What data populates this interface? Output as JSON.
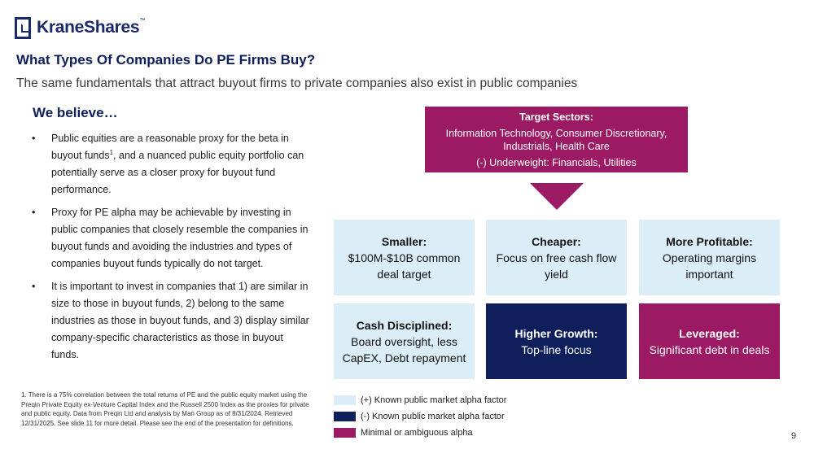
{
  "logo": {
    "name": "KraneShares",
    "tm": "™"
  },
  "title": "What Types Of Companies Do PE Firms Buy?",
  "subtitle": "The same fundamentals that attract buyout firms to private companies also exist in public companies",
  "believe": "We believe…",
  "bullets": {
    "b1_pre": "Public equities are a reasonable proxy for the beta in buyout funds",
    "b1_sup": "1",
    "b1_post": ", and a nuanced public equity portfolio can potentially serve as a closer proxy for buyout fund performance.",
    "b2": "Proxy for PE alpha may be achievable by investing in public companies that closely resemble the companies in buyout funds and avoiding the industries and types of companies buyout funds typically do not target.",
    "b3": "It is important to invest in companies that 1) are similar in size to those in buyout funds, 2) belong to the same industries as those in buyout funds, and 3) display similar company-specific characteristics as those in buyout funds."
  },
  "footnote": "1. There is a 75% correlation between the total returns of PE and the public equity market using the Preqin Private Equity ex-Venture Capital Index and the Russell 2500 Index as the proxies for private and public equity. Data from Preqin Ltd and analysis by Man Group as of 8/31/2024. Retrieved 12/31/2025. See slide 11 for more detail. Please see the end of the presentation for definitions.",
  "target": {
    "title": "Target Sectors:",
    "sectors": "Information Technology, Consumer Discretionary, Industrials, Health Care",
    "underweight": "(-) Underweight: Financials, Utilities"
  },
  "boxes": {
    "smaller": {
      "title": "Smaller:",
      "desc": "$100M-$10B common deal target"
    },
    "cheaper": {
      "title": "Cheaper:",
      "desc": "Focus on free cash flow yield"
    },
    "profitable": {
      "title": "More Profitable:",
      "desc": "Operating margins important"
    },
    "cash": {
      "title": "Cash Disciplined:",
      "desc": "Board oversight, less CapEX, Debt repayment"
    },
    "growth": {
      "title": "Higher Growth:",
      "desc": "Top-line focus"
    },
    "leveraged": {
      "title": "Leveraged:",
      "desc": "Significant debt in deals"
    }
  },
  "legend": {
    "positive": "(+)  Known public market alpha factor",
    "negative": "(-)  Known public market alpha factor",
    "minimal": "Minimal or ambiguous alpha"
  },
  "colors": {
    "navy": "#0e1f5b",
    "plum": "#9c1a63",
    "light": "#dbeef8"
  },
  "page_number": "9"
}
